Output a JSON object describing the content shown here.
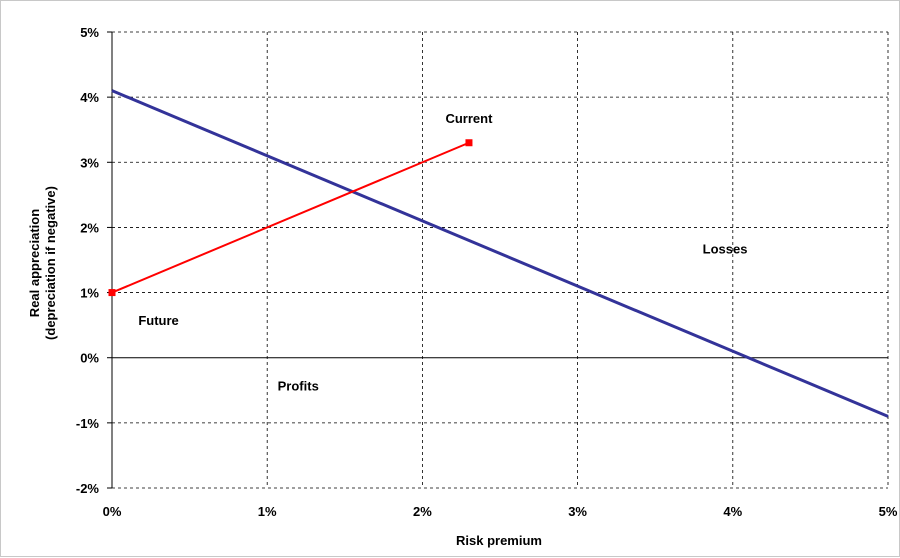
{
  "chart_data": {
    "type": "line",
    "xlabel": "Risk premium",
    "ylabel_line1": "Real appreciation",
    "ylabel_line2": "(depreciation if negative)",
    "xlim": [
      0,
      5
    ],
    "ylim": [
      -2,
      5
    ],
    "x_ticks": [
      0,
      1,
      2,
      3,
      4,
      5
    ],
    "x_tick_labels": [
      "0%",
      "1%",
      "2%",
      "3%",
      "4%",
      "5%"
    ],
    "y_ticks": [
      -2,
      -1,
      0,
      1,
      2,
      3,
      4,
      5
    ],
    "y_tick_labels": [
      "-2%",
      "-1%",
      "0%",
      "1%",
      "2%",
      "3%",
      "4%",
      "5%"
    ],
    "grid": "dashed",
    "series": [
      {
        "color": "#333399",
        "x": [
          0,
          5
        ],
        "y": [
          4.1,
          -0.9
        ],
        "marker": "none"
      },
      {
        "color": "#ff0000",
        "x": [
          0,
          2.3
        ],
        "y": [
          1.0,
          3.3
        ],
        "marker": "square"
      }
    ],
    "annotations": [
      {
        "text": "Current",
        "x": 2.3,
        "y": 3.6
      },
      {
        "text": "Losses",
        "x": 3.95,
        "y": 1.6
      },
      {
        "text": "Future",
        "x": 0.3,
        "y": 0.5
      },
      {
        "text": "Profits",
        "x": 1.2,
        "y": -0.5
      }
    ]
  }
}
